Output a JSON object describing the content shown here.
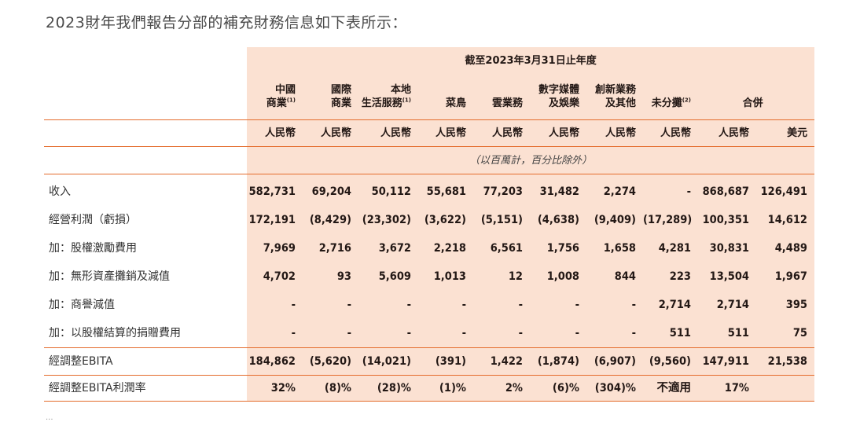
{
  "intro": "2023財年我們報告分部的補充財務信息如下表所示：",
  "period_title": "截至2023年3月31日止年度",
  "columns": [
    {
      "l1": "中國",
      "l2": "商業",
      "sup": "(1)",
      "currency": "人民幣"
    },
    {
      "l1": "國際",
      "l2": "商業",
      "sup": "",
      "currency": "人民幣"
    },
    {
      "l1": "本地",
      "l2": "生活服務",
      "sup": "(1)",
      "currency": "人民幣"
    },
    {
      "l1": "",
      "l2": "菜鳥",
      "sup": "",
      "currency": "人民幣"
    },
    {
      "l1": "",
      "l2": "雲業務",
      "sup": "",
      "currency": "人民幣"
    },
    {
      "l1": "數字媒體",
      "l2": "及娛樂",
      "sup": "",
      "currency": "人民幣"
    },
    {
      "l1": "創新業務",
      "l2": "及其他",
      "sup": "",
      "currency": "人民幣"
    },
    {
      "l1": "",
      "l2": "未分攤",
      "sup": "(2)",
      "currency": "人民幣"
    },
    {
      "l1": "",
      "l2": "合併",
      "sup": "",
      "currency": "人民幣"
    },
    {
      "l1": "",
      "l2": "",
      "sup": "",
      "currency": "美元"
    }
  ],
  "unit_note": "（以百萬計，百分比除外）",
  "rows": [
    {
      "label": "收入",
      "values": [
        "582,731",
        "69,204",
        "50,112",
        "55,681",
        "77,203",
        "31,482",
        "2,274",
        "-",
        "868,687",
        "126,491"
      ]
    },
    {
      "label": "經營利潤（虧損）",
      "values": [
        "172,191",
        "(8,429)",
        "(23,302)",
        "(3,622)",
        "(5,151)",
        "(4,638)",
        "(9,409)",
        "(17,289)",
        "100,351",
        "14,612"
      ]
    },
    {
      "label": "加：股權激勵費用",
      "values": [
        "7,969",
        "2,716",
        "3,672",
        "2,218",
        "6,561",
        "1,756",
        "1,658",
        "4,281",
        "30,831",
        "4,489"
      ]
    },
    {
      "label": "加：無形資產攤銷及減值",
      "values": [
        "4,702",
        "93",
        "5,609",
        "1,013",
        "12",
        "1,008",
        "844",
        "223",
        "13,504",
        "1,967"
      ]
    },
    {
      "label": "加：商譽減值",
      "values": [
        "-",
        "-",
        "-",
        "-",
        "-",
        "-",
        "-",
        "2,714",
        "2,714",
        "395"
      ]
    },
    {
      "label": "加：以股權結算的捐贈費用",
      "values": [
        "-",
        "-",
        "-",
        "-",
        "-",
        "-",
        "-",
        "511",
        "511",
        "75"
      ]
    }
  ],
  "ebita": {
    "label": "經調整EBITA",
    "values": [
      "184,862",
      "(5,620)",
      "(14,021)",
      "(391)",
      "1,422",
      "(1,874)",
      "(6,907)",
      "(9,560)",
      "147,911",
      "21,538"
    ]
  },
  "margin": {
    "label": "經調整EBITA利潤率",
    "values": [
      "32%",
      "(8)%",
      "(28)%",
      "(1)%",
      "2%",
      "(6)%",
      "(304)%",
      "不適用",
      "17%",
      ""
    ]
  },
  "footnote": "..."
}
